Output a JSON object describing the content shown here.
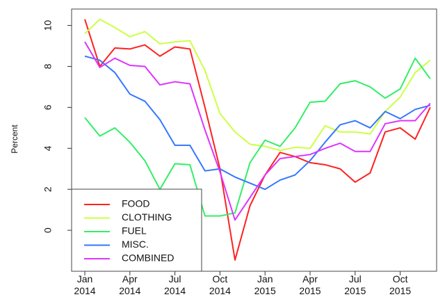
{
  "chart_data": {
    "type": "line",
    "y_label": "Percent",
    "categories": [
      "Jan 2014",
      null,
      null,
      "Apr 2014",
      null,
      null,
      "Jul 2014",
      null,
      null,
      "Oct 2014",
      null,
      null,
      "Jan 2015",
      null,
      null,
      "Apr 2015",
      null,
      null,
      "Jul 2015",
      null,
      null,
      "Oct 2015",
      null,
      null
    ],
    "series": [
      {
        "name": "FOOD",
        "color": "#ff2020",
        "values": [
          10.3,
          8.0,
          8.9,
          8.85,
          9.05,
          8.5,
          8.95,
          8.85,
          6.0,
          3.0,
          -1.45,
          1.2,
          2.7,
          3.8,
          3.6,
          3.3,
          3.2,
          3.0,
          2.35,
          2.8,
          4.8,
          5.0,
          4.45,
          6.0
        ]
      },
      {
        "name": "CLOTHING",
        "color": "#ccff44",
        "values": [
          9.6,
          10.3,
          9.9,
          9.45,
          9.7,
          9.1,
          9.2,
          9.25,
          7.8,
          5.7,
          4.8,
          4.2,
          4.1,
          3.9,
          4.05,
          4.0,
          5.1,
          4.8,
          4.8,
          4.7,
          5.8,
          6.5,
          7.7,
          8.3
        ]
      },
      {
        "name": "FUEL",
        "color": "#33ee66",
        "values": [
          5.5,
          4.6,
          5.0,
          4.3,
          3.4,
          2.0,
          3.25,
          3.2,
          0.7,
          0.7,
          0.85,
          3.3,
          4.4,
          4.1,
          5.0,
          6.25,
          6.3,
          7.15,
          7.3,
          7.0,
          6.45,
          6.9,
          8.4,
          7.4
        ]
      },
      {
        "name": "MISC.",
        "color": "#3377ff",
        "values": [
          8.5,
          8.3,
          7.7,
          6.65,
          6.3,
          5.4,
          4.15,
          4.15,
          2.9,
          3.0,
          2.6,
          2.3,
          2.0,
          2.45,
          2.7,
          3.4,
          4.3,
          5.15,
          5.35,
          5.0,
          5.8,
          5.45,
          5.9,
          6.1
        ]
      },
      {
        "name": "COMBINED",
        "color": "#dd33ff",
        "values": [
          9.2,
          7.95,
          8.4,
          8.05,
          8.0,
          7.1,
          7.25,
          7.15,
          4.9,
          2.85,
          0.5,
          1.6,
          2.7,
          3.5,
          3.6,
          3.7,
          4.0,
          4.25,
          3.85,
          3.85,
          5.2,
          5.35,
          5.35,
          6.2
        ]
      }
    ],
    "ylim": [
      -2,
      10.8
    ],
    "yticks": [
      0,
      2,
      4,
      6,
      8,
      10
    ],
    "legend": "bottom-left"
  }
}
